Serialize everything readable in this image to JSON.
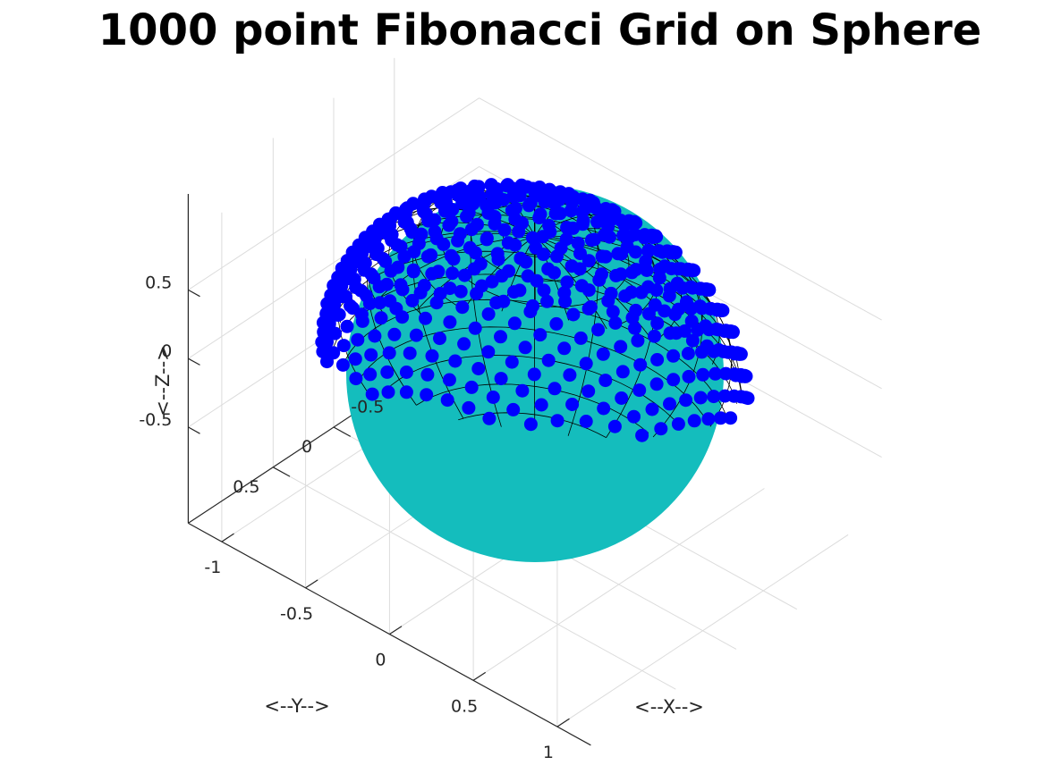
{
  "chart_data": {
    "type": "scatter",
    "title": "1000 point Fibonacci Grid on Sphere",
    "xlabel": "<--X-->",
    "ylabel": "<--Y-->",
    "zlabel": "<--Z-->",
    "n_points": 1000,
    "xlim": [
      -1.2,
      1.2
    ],
    "ylim": [
      -1.2,
      1.2
    ],
    "zlim": [
      -1.2,
      1.2
    ],
    "x_ticks": [
      "-1",
      "-0.5",
      "0",
      "0.5",
      "1"
    ],
    "y_ticks": [
      "-0.5",
      "0",
      "0.5"
    ],
    "z_ticks": [
      "-0.5",
      "0",
      "0.5"
    ],
    "x_tick_values": [
      -1,
      -0.5,
      0,
      0.5,
      1
    ],
    "y_tick_values": [
      -0.5,
      0,
      0.5
    ],
    "z_tick_values": [
      -0.5,
      0,
      0.5
    ],
    "grid": true,
    "view": {
      "azimuth_deg": -37.5,
      "elevation_deg": 30
    },
    "point_color": "#0000ff",
    "sphere_color": "#14bdbd",
    "mesh_color": "#000000"
  }
}
